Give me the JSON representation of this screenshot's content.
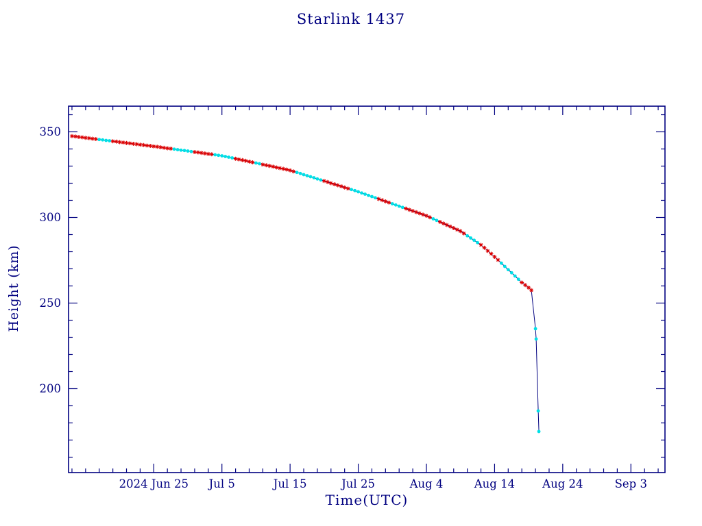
{
  "chart_data": {
    "type": "line",
    "title": "Starlink 1437",
    "xlabel": "Time(UTC)",
    "ylabel": "Height (km)",
    "x_unit": "days_since_2024_06_13",
    "x_domain": [
      -0.5,
      87
    ],
    "y_domain": [
      151,
      365
    ],
    "x_ticks": [
      {
        "d": 12,
        "label": "2024 Jun 25"
      },
      {
        "d": 22,
        "label": "Jul 5"
      },
      {
        "d": 32,
        "label": "Jul 15"
      },
      {
        "d": 42,
        "label": "Jul 25"
      },
      {
        "d": 52,
        "label": "Aug 4"
      },
      {
        "d": 62,
        "label": "Aug 14"
      },
      {
        "d": 72,
        "label": "Aug 24"
      },
      {
        "d": 82,
        "label": "Sep 3"
      }
    ],
    "x_minor_step": 2,
    "y_ticks": [
      200,
      250,
      300,
      350
    ],
    "y_minor_step": 10,
    "grid": false,
    "legend": "none",
    "colors": {
      "frame": "#000080",
      "line": "#000080",
      "text": "#000080",
      "red_markers": "#dd0000",
      "cyan_markers": "#00e0e6"
    },
    "cyan_ranges": [
      [
        4,
        5.5
      ],
      [
        15,
        17.5
      ],
      [
        21,
        23.5
      ],
      [
        27,
        27.5
      ],
      [
        33,
        36.5
      ],
      [
        41,
        44.5
      ],
      [
        47,
        48.5
      ],
      [
        53,
        53.5
      ],
      [
        58,
        59.5
      ],
      [
        63,
        65.5
      ],
      [
        67.9,
        68.6
      ]
    ],
    "points": [
      [
        0,
        347.5
      ],
      [
        0.5,
        347.3
      ],
      [
        1,
        347
      ],
      [
        1.5,
        346.8
      ],
      [
        2,
        346.5
      ],
      [
        2.5,
        346.3
      ],
      [
        3,
        346
      ],
      [
        3.5,
        345.8
      ],
      [
        4,
        345.5
      ],
      [
        4.5,
        345.3
      ],
      [
        5,
        345
      ],
      [
        5.5,
        344.8
      ],
      [
        6,
        344.5
      ],
      [
        6.5,
        344.3
      ],
      [
        7,
        344
      ],
      [
        7.5,
        343.8
      ],
      [
        8,
        343.5
      ],
      [
        8.5,
        343.3
      ],
      [
        9,
        343
      ],
      [
        9.5,
        342.8
      ],
      [
        10,
        342.5
      ],
      [
        10.5,
        342.3
      ],
      [
        11,
        342
      ],
      [
        11.5,
        341.8
      ],
      [
        12,
        341.5
      ],
      [
        12.5,
        341.3
      ],
      [
        13,
        341
      ],
      [
        13.5,
        340.7
      ],
      [
        14,
        340.4
      ],
      [
        14.5,
        340.2
      ],
      [
        15,
        339.9
      ],
      [
        15.5,
        339.6
      ],
      [
        16,
        339.3
      ],
      [
        16.5,
        339.1
      ],
      [
        17,
        338.8
      ],
      [
        17.5,
        338.5
      ],
      [
        18,
        338.2
      ],
      [
        18.5,
        338
      ],
      [
        19,
        337.7
      ],
      [
        19.5,
        337.4
      ],
      [
        20,
        337.1
      ],
      [
        20.5,
        336.9
      ],
      [
        21,
        336.6
      ],
      [
        21.5,
        336.3
      ],
      [
        22,
        336
      ],
      [
        22.5,
        335.6
      ],
      [
        23,
        335.2
      ],
      [
        23.5,
        334.8
      ],
      [
        24,
        334.3
      ],
      [
        24.5,
        333.9
      ],
      [
        25,
        333.5
      ],
      [
        25.5,
        333.1
      ],
      [
        26,
        332.6
      ],
      [
        26.5,
        332.2
      ],
      [
        27,
        331.8
      ],
      [
        27.5,
        331.4
      ],
      [
        28,
        330.9
      ],
      [
        28.5,
        330.5
      ],
      [
        29,
        330.1
      ],
      [
        29.5,
        329.7
      ],
      [
        30,
        329.2
      ],
      [
        30.5,
        328.8
      ],
      [
        31,
        328.4
      ],
      [
        31.5,
        328
      ],
      [
        32,
        327.5
      ],
      [
        32.5,
        326.9
      ],
      [
        33,
        326.3
      ],
      [
        33.5,
        325.7
      ],
      [
        34,
        325
      ],
      [
        34.5,
        324.4
      ],
      [
        35,
        323.8
      ],
      [
        35.5,
        323.2
      ],
      [
        36,
        322.5
      ],
      [
        36.5,
        321.9
      ],
      [
        37,
        321.3
      ],
      [
        37.5,
        320.7
      ],
      [
        38,
        320
      ],
      [
        38.5,
        319.4
      ],
      [
        39,
        318.8
      ],
      [
        39.5,
        318.2
      ],
      [
        40,
        317.5
      ],
      [
        40.5,
        316.9
      ],
      [
        41,
        316.3
      ],
      [
        41.5,
        315.7
      ],
      [
        42,
        315
      ],
      [
        42.5,
        314.3
      ],
      [
        43,
        313.6
      ],
      [
        43.5,
        312.9
      ],
      [
        44,
        312.2
      ],
      [
        44.5,
        311.5
      ],
      [
        45,
        310.8
      ],
      [
        45.5,
        310.1
      ],
      [
        46,
        309.4
      ],
      [
        46.5,
        308.7
      ],
      [
        47,
        308
      ],
      [
        47.5,
        307.3
      ],
      [
        48,
        306.6
      ],
      [
        48.5,
        305.9
      ],
      [
        49,
        305.2
      ],
      [
        49.5,
        304.5
      ],
      [
        50,
        303.8
      ],
      [
        50.5,
        303.1
      ],
      [
        51,
        302.4
      ],
      [
        51.5,
        301.7
      ],
      [
        52,
        301
      ],
      [
        52.5,
        300.1
      ],
      [
        53,
        299.2
      ],
      [
        53.5,
        298.3
      ],
      [
        54,
        297.4
      ],
      [
        54.5,
        296.5
      ],
      [
        55,
        295.6
      ],
      [
        55.5,
        294.7
      ],
      [
        56,
        293.8
      ],
      [
        56.5,
        292.9
      ],
      [
        57,
        292
      ],
      [
        57.5,
        290.7
      ],
      [
        58,
        289.3
      ],
      [
        58.5,
        288
      ],
      [
        59,
        286.7
      ],
      [
        59.5,
        285.3
      ],
      [
        60,
        284
      ],
      [
        60.5,
        282.3
      ],
      [
        61,
        280.5
      ],
      [
        61.5,
        278.8
      ],
      [
        62,
        277
      ],
      [
        62.5,
        275.2
      ],
      [
        63,
        273.3
      ],
      [
        63.5,
        271.4
      ],
      [
        64,
        269.5
      ],
      [
        64.5,
        267.7
      ],
      [
        65,
        265.8
      ],
      [
        65.5,
        263.9
      ],
      [
        66,
        262
      ],
      [
        66.5,
        260.5
      ],
      [
        67,
        259
      ],
      [
        67.4,
        257.5
      ],
      [
        68,
        235
      ],
      [
        68.1,
        229
      ],
      [
        68.4,
        187
      ],
      [
        68.5,
        175
      ]
    ]
  }
}
